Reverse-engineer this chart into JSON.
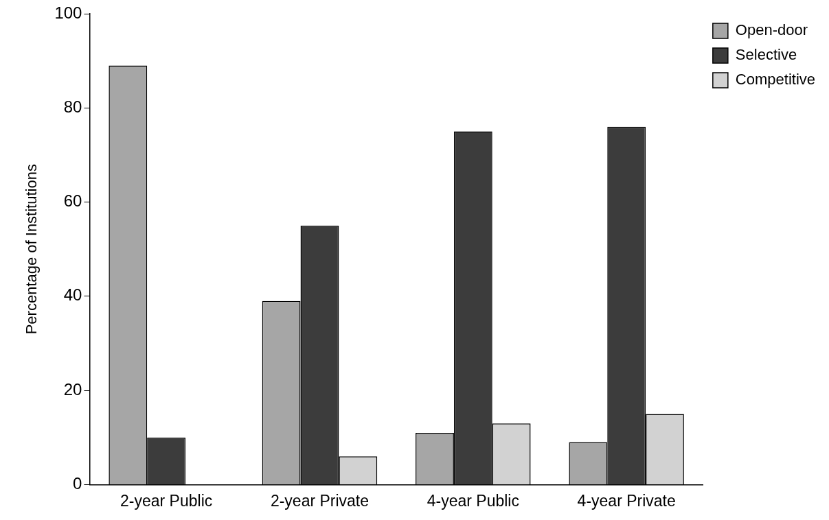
{
  "chart_data": {
    "type": "bar",
    "ylabel": "Percentage of Institutions",
    "categories": [
      "2-year Public",
      "2-year Private",
      "4-year Public",
      "4-year Private"
    ],
    "series": [
      {
        "name": "Open-door",
        "color": "#a6a6a6",
        "values": [
          89,
          39,
          11,
          9
        ]
      },
      {
        "name": "Selective",
        "color": "#3c3c3c",
        "values": [
          10,
          55,
          75,
          76
        ]
      },
      {
        "name": "Competitive",
        "color": "#d2d2d2",
        "values": [
          null,
          6,
          13,
          15
        ]
      }
    ],
    "ylim": [
      0,
      100
    ],
    "yticks": [
      0,
      20,
      40,
      60,
      80,
      100
    ],
    "grid": false,
    "legend": "top right"
  }
}
